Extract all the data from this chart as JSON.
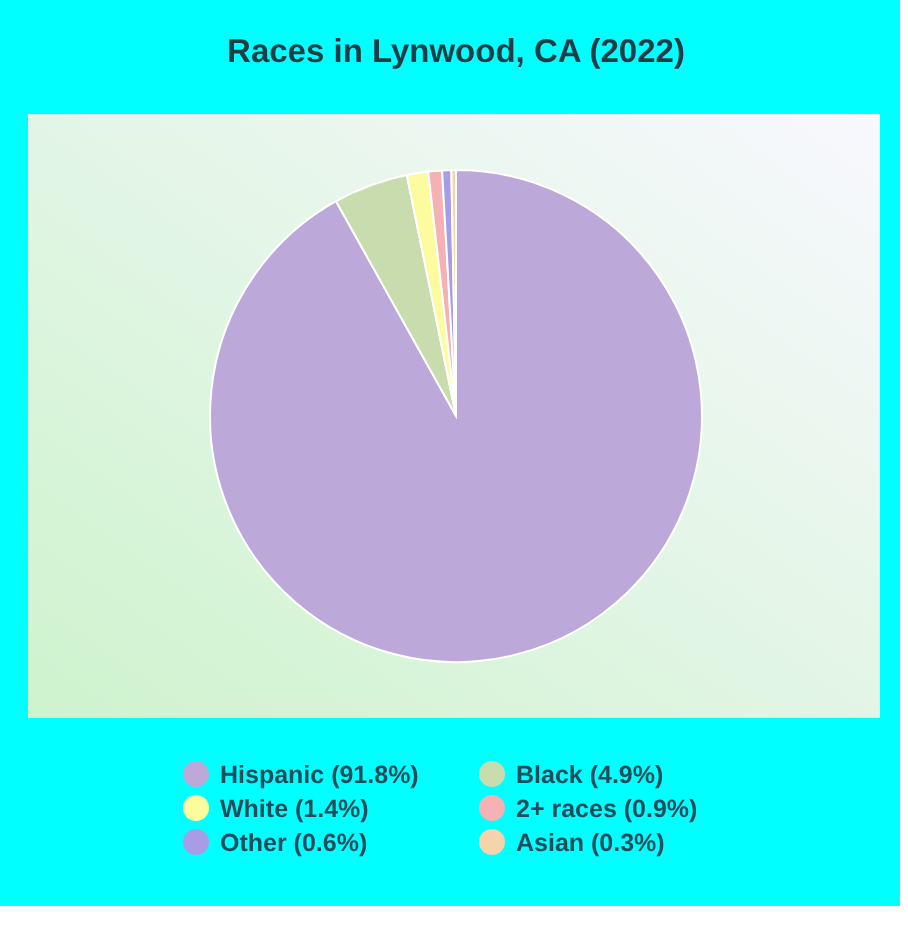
{
  "chart_data": {
    "type": "pie",
    "title": "Races in Lynwood, CA (2022)",
    "categories": [
      "Hispanic (91.8%)",
      "Black (4.9%)",
      "White (1.4%)",
      "2+ races (0.9%)",
      "Other (0.6%)",
      "Asian (0.3%)"
    ],
    "values": [
      91.8,
      4.9,
      1.4,
      0.9,
      0.6,
      0.3
    ],
    "colors": [
      "#bda8da",
      "#c8dcae",
      "#fcfc9e",
      "#f5b1b4",
      "#a89ce6",
      "#f6d3ab"
    ],
    "legend": "bottom"
  }
}
